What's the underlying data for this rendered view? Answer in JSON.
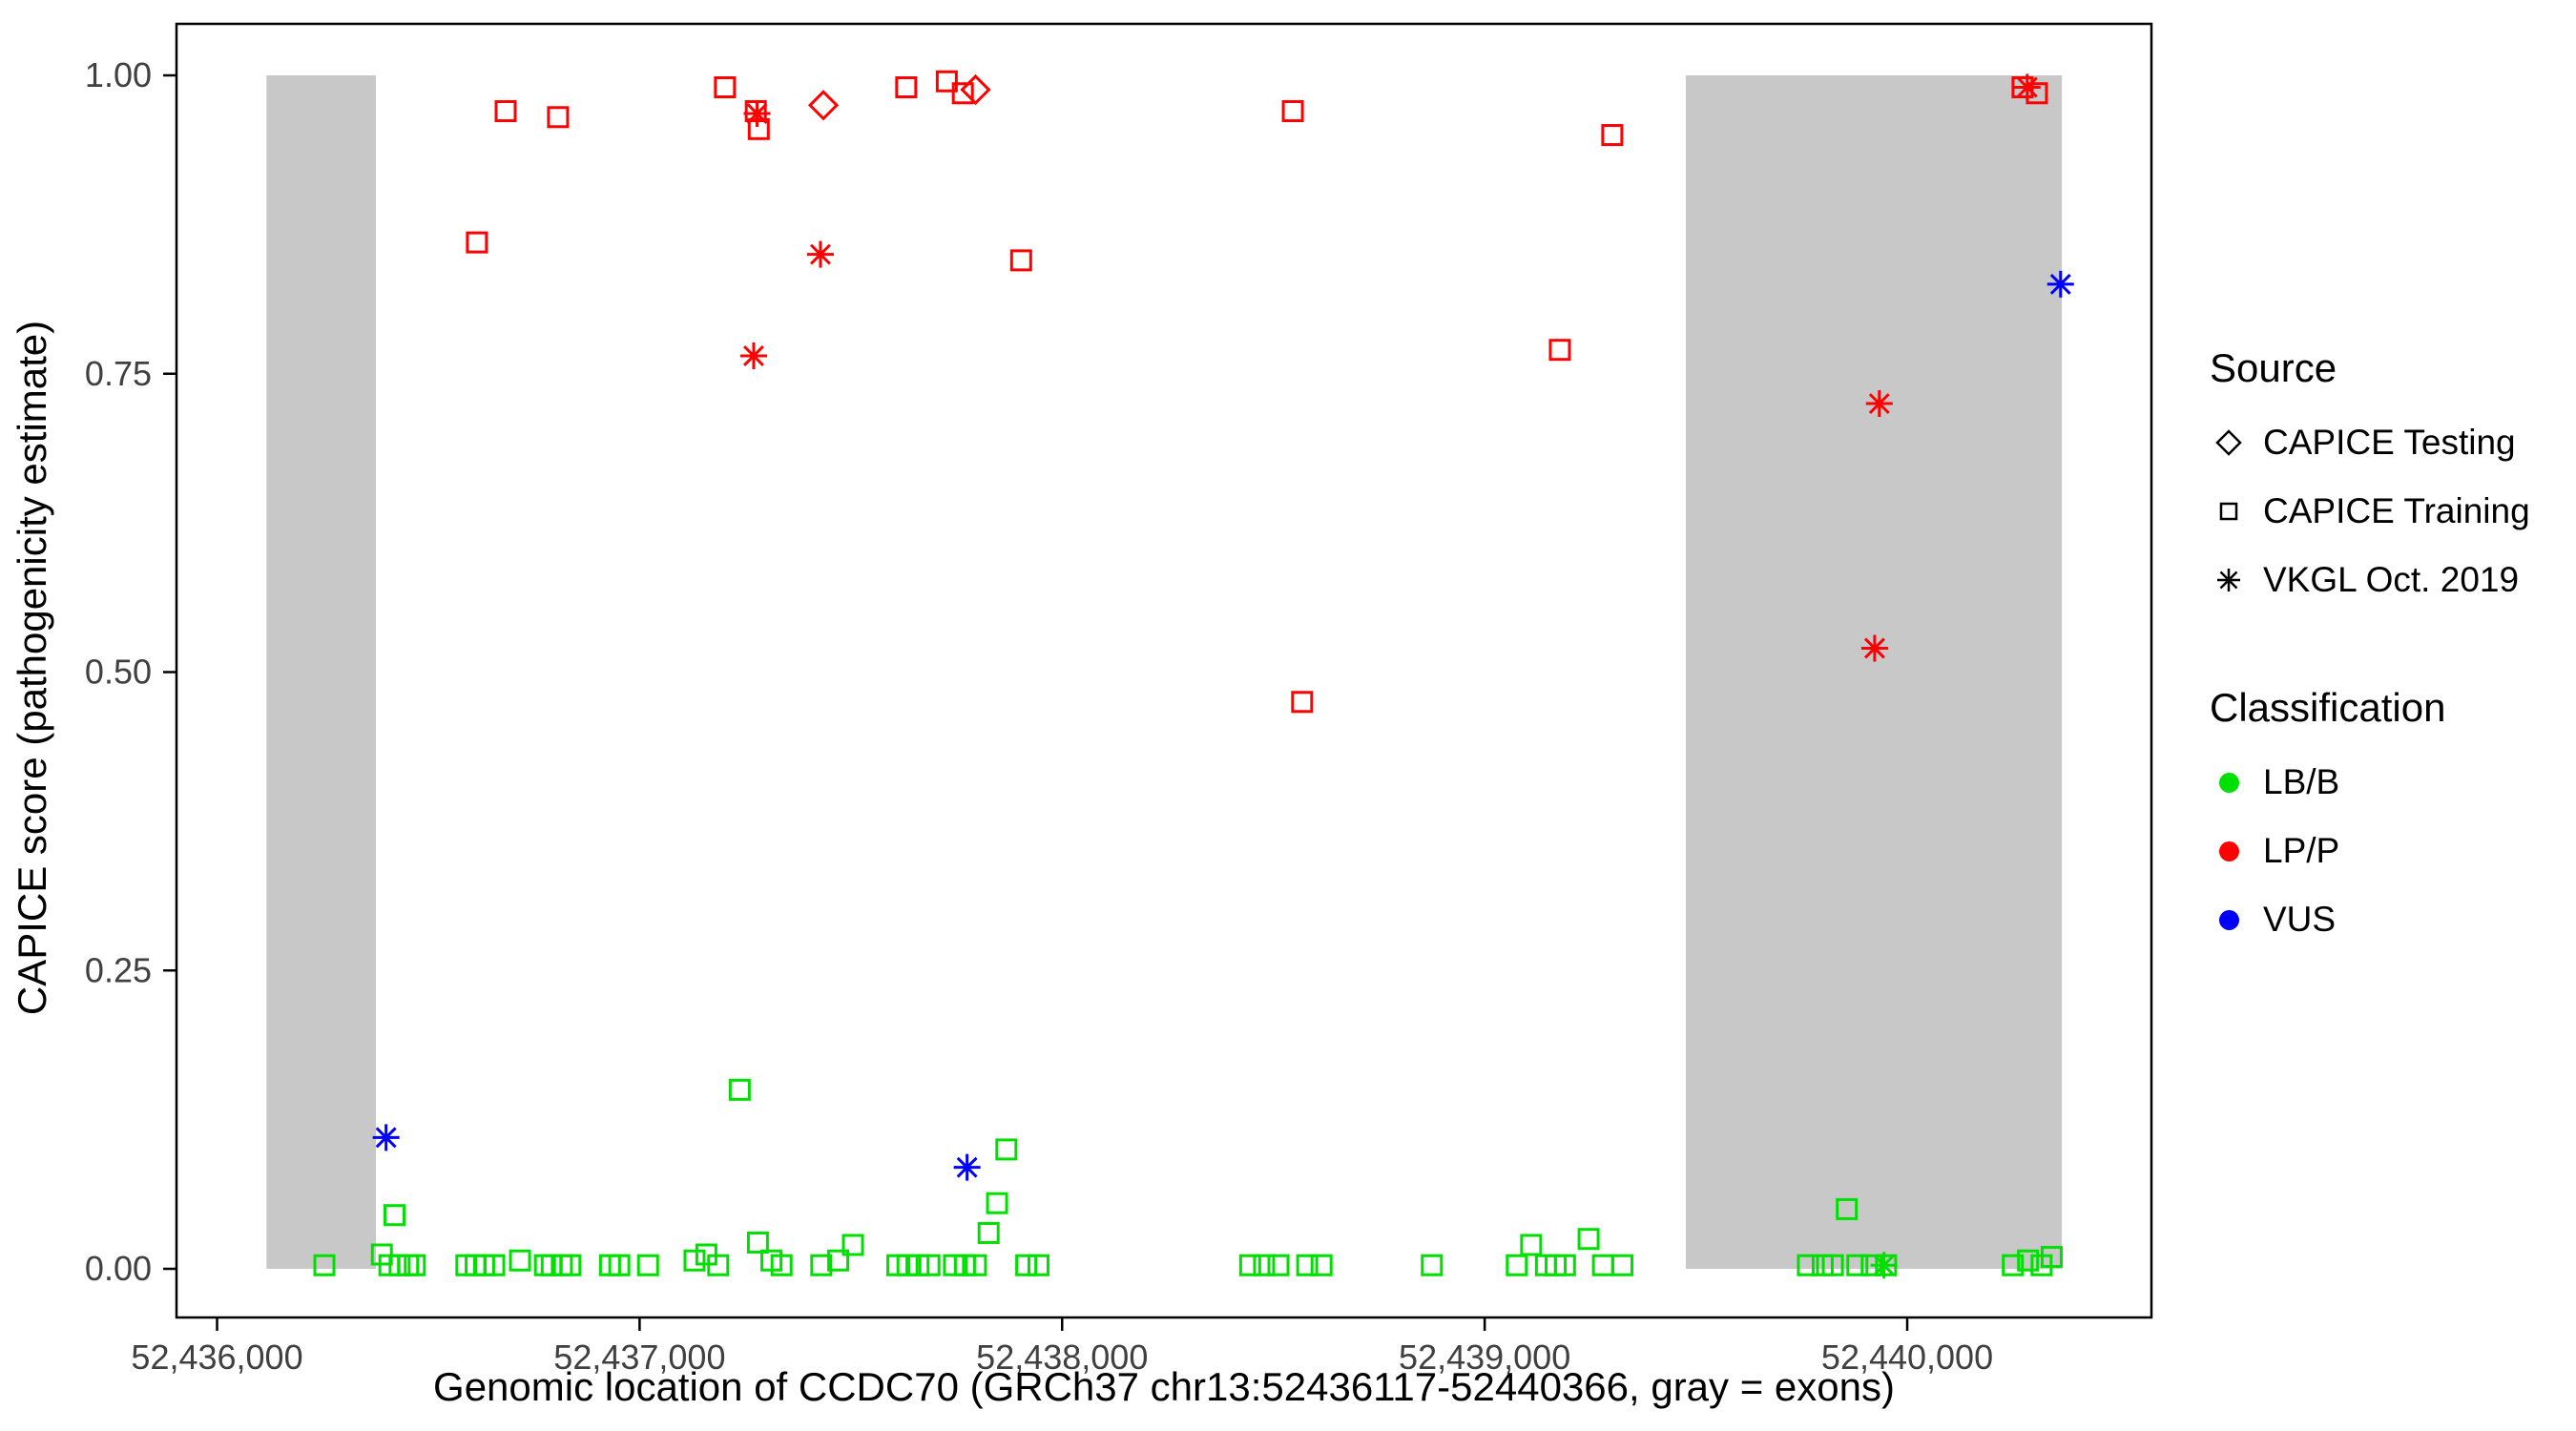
{
  "figure": {
    "xlabel": "Genomic location of CCDC70 (GRCh37 chr13:52436117-52440366, gray = exons)",
    "ylabel": "CAPICE score (pathogenicity estimate)"
  },
  "legend": {
    "source": {
      "title": "Source",
      "items": [
        {
          "label": "CAPICE Testing",
          "marker": "diamond"
        },
        {
          "label": "CAPICE Training",
          "marker": "square"
        },
        {
          "label": "VKGL Oct. 2019",
          "marker": "asterisk"
        }
      ]
    },
    "classification": {
      "title": "Classification",
      "items": [
        {
          "label": "LB/B",
          "color": "#00E000"
        },
        {
          "label": "LP/P",
          "color": "#FF0000"
        },
        {
          "label": "VUS",
          "color": "#0000FF"
        }
      ]
    }
  },
  "chart_data": {
    "type": "scatter",
    "title": "",
    "xlabel": "Genomic location of CCDC70 (GRCh37 chr13:52436117-52440366, gray = exons)",
    "ylabel": "CAPICE score (pathogenicity estimate)",
    "xlim": [
      52435904,
      52440578
    ],
    "ylim": [
      0,
      1
    ],
    "grid": false,
    "legend_position": "right",
    "x_ticks": [
      {
        "value": 52436000,
        "label": "52,436,000"
      },
      {
        "value": 52437000,
        "label": "52,437,000"
      },
      {
        "value": 52438000,
        "label": "52,438,000"
      },
      {
        "value": 52439000,
        "label": "52,439,000"
      },
      {
        "value": 52440000,
        "label": "52,440,000"
      }
    ],
    "y_ticks": [
      {
        "value": 0.0,
        "label": "0.00"
      },
      {
        "value": 0.25,
        "label": "0.25"
      },
      {
        "value": 0.5,
        "label": "0.50"
      },
      {
        "value": 0.75,
        "label": "0.75"
      },
      {
        "value": 1.0,
        "label": "1.00"
      }
    ],
    "exons": [
      [
        52436117,
        52436376
      ],
      [
        52439476,
        52440366
      ]
    ],
    "exon_color": "#C8C8C8",
    "series": [
      {
        "name": "CAPICE Training LB/B",
        "source": "CAPICE Training",
        "classification": "LB/B",
        "marker": "square",
        "color": "#00E000",
        "points": [
          [
            52436254,
            0.003
          ],
          [
            52436390,
            0.012
          ],
          [
            52436408,
            0.003
          ],
          [
            52436420,
            0.045
          ],
          [
            52436432,
            0.003
          ],
          [
            52436452,
            0.003
          ],
          [
            52436468,
            0.003
          ],
          [
            52436590,
            0.003
          ],
          [
            52436612,
            0.003
          ],
          [
            52436632,
            0.003
          ],
          [
            52436656,
            0.003
          ],
          [
            52436717,
            0.007
          ],
          [
            52436776,
            0.003
          ],
          [
            52436792,
            0.003
          ],
          [
            52436816,
            0.003
          ],
          [
            52436836,
            0.003
          ],
          [
            52436930,
            0.003
          ],
          [
            52436952,
            0.003
          ],
          [
            52437020,
            0.003
          ],
          [
            52437130,
            0.007
          ],
          [
            52437158,
            0.012
          ],
          [
            52437186,
            0.003
          ],
          [
            52437237,
            0.15
          ],
          [
            52437280,
            0.022
          ],
          [
            52437312,
            0.007
          ],
          [
            52437336,
            0.003
          ],
          [
            52437430,
            0.003
          ],
          [
            52437470,
            0.007
          ],
          [
            52437505,
            0.02
          ],
          [
            52437610,
            0.003
          ],
          [
            52437634,
            0.003
          ],
          [
            52437660,
            0.003
          ],
          [
            52437686,
            0.003
          ],
          [
            52437744,
            0.003
          ],
          [
            52437770,
            0.003
          ],
          [
            52437796,
            0.003
          ],
          [
            52437826,
            0.03
          ],
          [
            52437846,
            0.055
          ],
          [
            52437868,
            0.1
          ],
          [
            52437915,
            0.003
          ],
          [
            52437944,
            0.003
          ],
          [
            52438445,
            0.003
          ],
          [
            52438478,
            0.003
          ],
          [
            52438512,
            0.003
          ],
          [
            52438580,
            0.003
          ],
          [
            52438614,
            0.003
          ],
          [
            52438875,
            0.003
          ],
          [
            52439076,
            0.003
          ],
          [
            52439110,
            0.02
          ],
          [
            52439145,
            0.003
          ],
          [
            52439168,
            0.003
          ],
          [
            52439190,
            0.003
          ],
          [
            52439246,
            0.025
          ],
          [
            52439280,
            0.003
          ],
          [
            52439326,
            0.003
          ],
          [
            52439765,
            0.003
          ],
          [
            52439800,
            0.003
          ],
          [
            52439824,
            0.003
          ],
          [
            52439857,
            0.05
          ],
          [
            52439882,
            0.003
          ],
          [
            52439916,
            0.003
          ],
          [
            52439950,
            0.003
          ],
          [
            52440250,
            0.003
          ],
          [
            52440286,
            0.007
          ],
          [
            52440318,
            0.003
          ],
          [
            52440342,
            0.01
          ]
        ]
      },
      {
        "name": "CAPICE Training LP/P",
        "source": "CAPICE Training",
        "classification": "LP/P",
        "marker": "square",
        "color": "#FF0000",
        "points": [
          [
            52436615,
            0.86
          ],
          [
            52436683,
            0.97
          ],
          [
            52436807,
            0.965
          ],
          [
            52437202,
            0.99
          ],
          [
            52437275,
            0.97
          ],
          [
            52437282,
            0.955
          ],
          [
            52437631,
            0.99
          ],
          [
            52437727,
            0.995
          ],
          [
            52437765,
            0.985
          ],
          [
            52437903,
            0.845
          ],
          [
            52438546,
            0.97
          ],
          [
            52438568,
            0.475
          ],
          [
            52439178,
            0.77
          ],
          [
            52439302,
            0.95
          ],
          [
            52440273,
            0.99
          ],
          [
            52440307,
            0.985
          ]
        ]
      },
      {
        "name": "CAPICE Testing LP/P",
        "source": "CAPICE Testing",
        "classification": "LP/P",
        "marker": "diamond",
        "color": "#FF0000",
        "points": [
          [
            52437435,
            0.975
          ],
          [
            52437795,
            0.988
          ]
        ]
      },
      {
        "name": "VKGL Oct. 2019 LP/P",
        "source": "VKGL Oct. 2019",
        "classification": "LP/P",
        "marker": "asterisk",
        "color": "#FF0000",
        "points": [
          [
            52437278,
            0.968
          ],
          [
            52437270,
            0.765
          ],
          [
            52437428,
            0.85
          ],
          [
            52439934,
            0.725
          ],
          [
            52439923,
            0.52
          ],
          [
            52440284,
            0.99
          ]
        ]
      },
      {
        "name": "VKGL Oct. 2019 VUS",
        "source": "VKGL Oct. 2019",
        "classification": "VUS",
        "marker": "asterisk",
        "color": "#0000FF",
        "points": [
          [
            52436400,
            0.11
          ],
          [
            52437775,
            0.085
          ],
          [
            52440363,
            0.825
          ]
        ]
      },
      {
        "name": "VKGL Oct. 2019 LB/B",
        "source": "VKGL Oct. 2019",
        "classification": "LB/B",
        "marker": "asterisk",
        "color": "#00E000",
        "points": [
          [
            52439945,
            0.003
          ]
        ]
      }
    ]
  }
}
